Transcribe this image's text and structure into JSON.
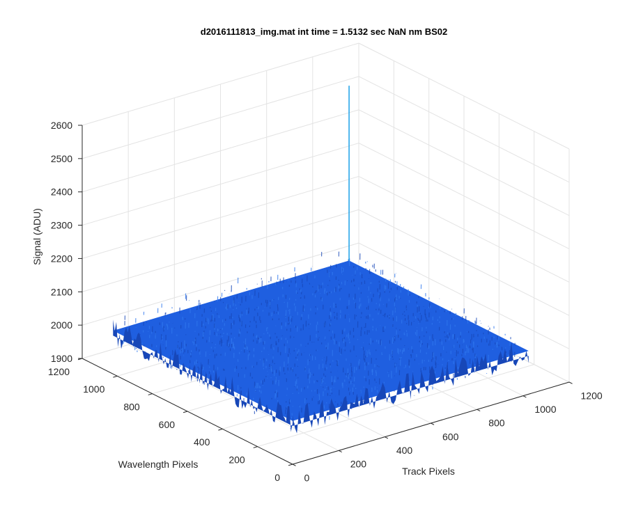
{
  "chart_data": {
    "type": "surface",
    "title": "d2016111813_img.mat int time = 1.5132 sec  NaN nm BS02",
    "xlabel": "Track Pixels",
    "ylabel": "Wavelength Pixels",
    "zlabel": "Signal (ADU)",
    "xlim": [
      0,
      1200
    ],
    "ylim": [
      0,
      1200
    ],
    "zlim": [
      1900,
      2600
    ],
    "x_ticks": [
      "0",
      "200",
      "400",
      "600",
      "800",
      "1000",
      "1200"
    ],
    "y_ticks": [
      "0",
      "200",
      "400",
      "600",
      "800",
      "1000",
      "1200"
    ],
    "z_ticks": [
      "1900",
      "2000",
      "2100",
      "2200",
      "2300",
      "2400",
      "2500",
      "2600"
    ],
    "surface_extent": {
      "x": [
        0,
        1024
      ],
      "y": [
        0,
        1024
      ]
    },
    "surface_mean": 2030,
    "noise_range": [
      1985,
      2080
    ],
    "spike": {
      "x": 1024,
      "y": 1024,
      "value": 2555
    },
    "grid": true,
    "colors": {
      "surface": "#1f5fe0",
      "surface_dark": "#1747b8",
      "surface_light": "#2f78ee",
      "spike": "#1aa0e8",
      "grid": "#e3e3e3",
      "axis": "#262626"
    }
  }
}
